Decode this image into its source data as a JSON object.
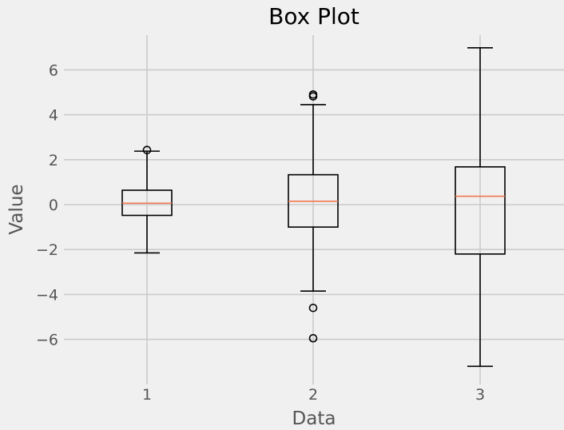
{
  "chart_data": {
    "type": "box",
    "title": "Box Plot",
    "xlabel": "Data",
    "ylabel": "Value",
    "grid": true,
    "ylim": [
      -7.8,
      7.8
    ],
    "yticks": [
      -6,
      -4,
      -2,
      0,
      2,
      4,
      6
    ],
    "ytick_labels": [
      "−6",
      "−4",
      "−2",
      "0",
      "2",
      "4",
      "6"
    ],
    "categories": [
      "1",
      "2",
      "3"
    ],
    "boxes": [
      {
        "label": "1",
        "whisker_low": -2.15,
        "q1": -0.48,
        "median": 0.06,
        "q3": 0.64,
        "whisker_high": 2.38,
        "fliers": [
          2.43
        ]
      },
      {
        "label": "2",
        "whisker_low": -3.85,
        "q1": -1.0,
        "median": 0.15,
        "q3": 1.33,
        "whisker_high": 4.45,
        "fliers": [
          4.82,
          4.9,
          -4.6,
          -5.95
        ]
      },
      {
        "label": "3",
        "whisker_low": -7.2,
        "q1": -2.2,
        "median": 0.37,
        "q3": 1.68,
        "whisker_high": 6.98,
        "fliers": []
      }
    ],
    "colors": {
      "background": "#f0f0f0",
      "grid": "#cbcbcb",
      "box": "#000000",
      "median": "#f07850"
    }
  }
}
